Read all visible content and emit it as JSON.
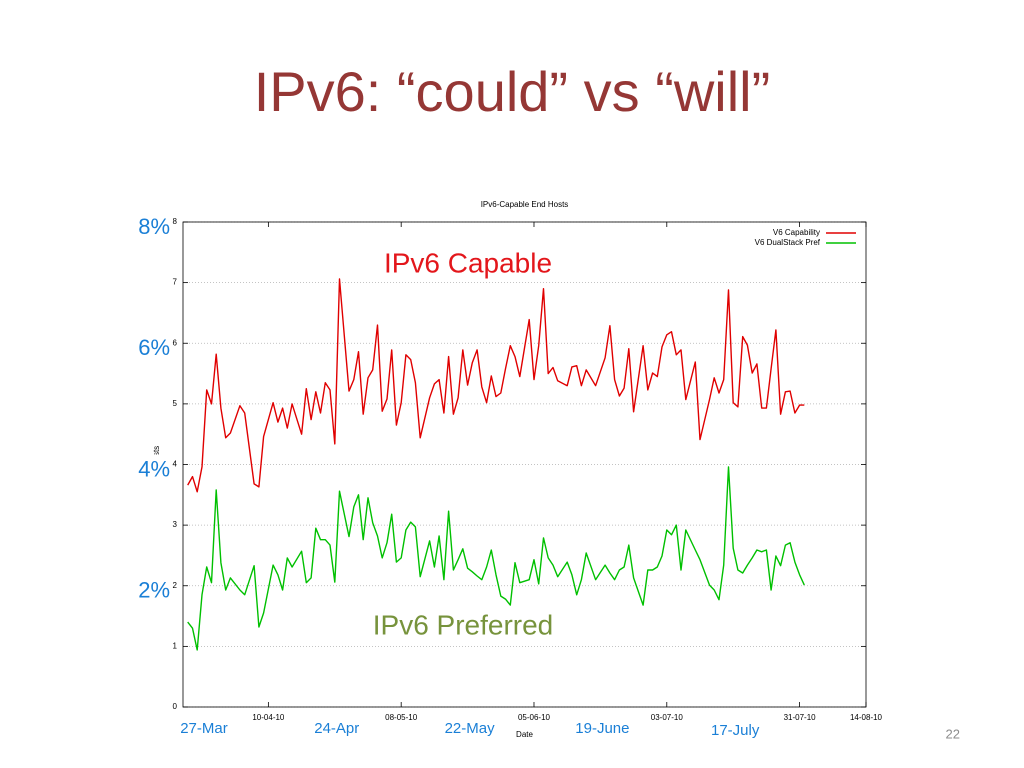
{
  "slide": {
    "title": "IPv6: “could” vs “will”",
    "page": "22",
    "y_marks": [
      {
        "value": 8,
        "label": "8%"
      },
      {
        "value": 6,
        "label": "6%"
      },
      {
        "value": 4,
        "label": "4%"
      },
      {
        "value": 2,
        "label": "2%"
      }
    ],
    "date_marks": [
      {
        "value": "2010-03-27",
        "label": "27-Mar"
      },
      {
        "value": "2010-04-24",
        "label": "24-Apr"
      },
      {
        "value": "2010-05-22",
        "label": "22-May"
      },
      {
        "value": "2010-06-19",
        "label": "19-June"
      },
      {
        "value": "2010-07-17",
        "label": "17-July"
      }
    ],
    "callouts": [
      {
        "text": "IPv6 Capable",
        "color": "#e3161b"
      },
      {
        "text": "IPv6 Preferred",
        "color": "#77933c"
      }
    ],
    "mark_color": "#1a7fd6"
  },
  "chart_data": {
    "type": "line",
    "title": "IPv6-Capable End Hosts",
    "xlabel": "Date",
    "ylabel": "% of hosts",
    "x": [
      "2010-03-24",
      "2010-03-25",
      "2010-03-26",
      "2010-03-27",
      "2010-03-28",
      "2010-03-29",
      "2010-03-30",
      "2010-03-31",
      "2010-04-01",
      "2010-04-02",
      "2010-04-04",
      "2010-04-05",
      "2010-04-07",
      "2010-04-08",
      "2010-04-09",
      "2010-04-11",
      "2010-04-12",
      "2010-04-13",
      "2010-04-14",
      "2010-04-15",
      "2010-04-17",
      "2010-04-18",
      "2010-04-19",
      "2010-04-20",
      "2010-04-21",
      "2010-04-22",
      "2010-04-23",
      "2010-04-24",
      "2010-04-25",
      "2010-04-27",
      "2010-04-28",
      "2010-04-29",
      "2010-04-30",
      "2010-05-01",
      "2010-05-02",
      "2010-05-03",
      "2010-05-04",
      "2010-05-05",
      "2010-05-06",
      "2010-05-07",
      "2010-05-08",
      "2010-05-09",
      "2010-05-10",
      "2010-05-11",
      "2010-05-12",
      "2010-05-14",
      "2010-05-15",
      "2010-05-16",
      "2010-05-17",
      "2010-05-18",
      "2010-05-19",
      "2010-05-20",
      "2010-05-21",
      "2010-05-22",
      "2010-05-23",
      "2010-05-24",
      "2010-05-25",
      "2010-05-26",
      "2010-05-27",
      "2010-05-28",
      "2010-05-29",
      "2010-05-30",
      "2010-05-31",
      "2010-06-01",
      "2010-06-02",
      "2010-06-04",
      "2010-06-05",
      "2010-06-06",
      "2010-06-07",
      "2010-06-08",
      "2010-06-09",
      "2010-06-10",
      "2010-06-12",
      "2010-06-13",
      "2010-06-14",
      "2010-06-15",
      "2010-06-16",
      "2010-06-18",
      "2010-06-20",
      "2010-06-21",
      "2010-06-22",
      "2010-06-23",
      "2010-06-24",
      "2010-06-25",
      "2010-06-26",
      "2010-06-28",
      "2010-06-29",
      "2010-06-30",
      "2010-07-01",
      "2010-07-02",
      "2010-07-03",
      "2010-07-04",
      "2010-07-05",
      "2010-07-06",
      "2010-07-07",
      "2010-07-09",
      "2010-07-10",
      "2010-07-12",
      "2010-07-13",
      "2010-07-14",
      "2010-07-15",
      "2010-07-16",
      "2010-07-17",
      "2010-07-18",
      "2010-07-19",
      "2010-07-20",
      "2010-07-21",
      "2010-07-22",
      "2010-07-23",
      "2010-07-24",
      "2010-07-25",
      "2010-07-26",
      "2010-07-27",
      "2010-07-28",
      "2010-07-29",
      "2010-07-30",
      "2010-07-31",
      "2010-08-01"
    ],
    "series": [
      {
        "name": "V6 Capability",
        "color": "#e00000",
        "values": [
          3.66,
          3.8,
          3.55,
          3.96,
          5.23,
          5.0,
          5.82,
          4.93,
          4.44,
          4.52,
          4.97,
          4.85,
          3.68,
          3.63,
          4.46,
          5.02,
          4.7,
          4.93,
          4.6,
          5.0,
          4.5,
          5.25,
          4.74,
          5.2,
          4.85,
          5.35,
          5.23,
          4.34,
          7.06,
          5.21,
          5.4,
          5.86,
          4.83,
          5.43,
          5.56,
          6.3,
          4.88,
          5.08,
          5.89,
          4.65,
          5.02,
          5.81,
          5.73,
          5.35,
          4.44,
          5.1,
          5.33,
          5.4,
          4.85,
          5.78,
          4.83,
          5.1,
          5.89,
          5.31,
          5.68,
          5.89,
          5.28,
          5.02,
          5.46,
          5.12,
          5.18,
          5.58,
          5.96,
          5.78,
          5.45,
          6.39,
          5.4,
          5.96,
          6.9,
          5.5,
          5.6,
          5.38,
          5.3,
          5.61,
          5.63,
          5.3,
          5.56,
          5.3,
          5.76,
          6.29,
          5.4,
          5.13,
          5.26,
          5.91,
          4.87,
          5.96,
          5.23,
          5.51,
          5.45,
          5.94,
          6.14,
          6.19,
          5.81,
          5.89,
          5.07,
          5.69,
          4.41,
          5.07,
          5.43,
          5.18,
          5.4,
          6.88,
          5.02,
          4.95,
          6.11,
          5.97,
          5.51,
          5.66,
          4.93,
          4.93,
          5.58,
          6.22,
          4.83,
          5.2,
          5.21,
          4.85,
          4.98,
          4.98
        ]
      },
      {
        "name": "V6 DualStack Pref",
        "color": "#00c000",
        "values": [
          1.4,
          1.3,
          0.94,
          1.85,
          2.31,
          2.05,
          3.58,
          2.38,
          1.93,
          2.13,
          1.93,
          1.85,
          2.33,
          1.32,
          1.55,
          2.34,
          2.18,
          1.93,
          2.46,
          2.31,
          2.57,
          2.05,
          2.13,
          2.95,
          2.76,
          2.76,
          2.67,
          2.06,
          3.56,
          2.81,
          3.3,
          3.5,
          2.76,
          3.45,
          3.04,
          2.82,
          2.46,
          2.71,
          3.18,
          2.39,
          2.46,
          2.92,
          3.05,
          2.97,
          2.15,
          2.74,
          2.31,
          2.82,
          2.1,
          3.23,
          2.26,
          2.43,
          2.61,
          2.29,
          2.23,
          2.16,
          2.1,
          2.31,
          2.59,
          2.18,
          1.83,
          1.78,
          1.68,
          2.38,
          2.05,
          2.1,
          2.43,
          2.03,
          2.79,
          2.46,
          2.34,
          2.15,
          2.39,
          2.18,
          1.85,
          2.1,
          2.54,
          2.1,
          2.34,
          2.21,
          2.1,
          2.26,
          2.31,
          2.67,
          2.13,
          1.68,
          2.26,
          2.26,
          2.31,
          2.49,
          2.92,
          2.84,
          3.0,
          2.26,
          2.92,
          2.59,
          2.43,
          2.01,
          1.93,
          1.77,
          2.34,
          3.96,
          2.62,
          2.26,
          2.21,
          2.34,
          2.46,
          2.59,
          2.56,
          2.59,
          1.93,
          2.49,
          2.33,
          2.67,
          2.71,
          2.39,
          2.18,
          2.01
        ]
      }
    ],
    "xlim": [
      "2010-03-23",
      "2010-08-14"
    ],
    "xticks": [
      {
        "value": "2010-04-10",
        "label": "10-04-10"
      },
      {
        "value": "2010-05-08",
        "label": "08-05-10"
      },
      {
        "value": "2010-06-05",
        "label": "05-06-10"
      },
      {
        "value": "2010-07-03",
        "label": "03-07-10"
      },
      {
        "value": "2010-07-31",
        "label": "31-07-10"
      },
      {
        "value": "2010-08-14",
        "label": "14-08-10"
      }
    ],
    "ylim": [
      0,
      8
    ],
    "yticks": [
      0,
      1,
      2,
      3,
      4,
      5,
      6,
      7,
      8
    ],
    "grid": true,
    "legend": "upper right"
  }
}
